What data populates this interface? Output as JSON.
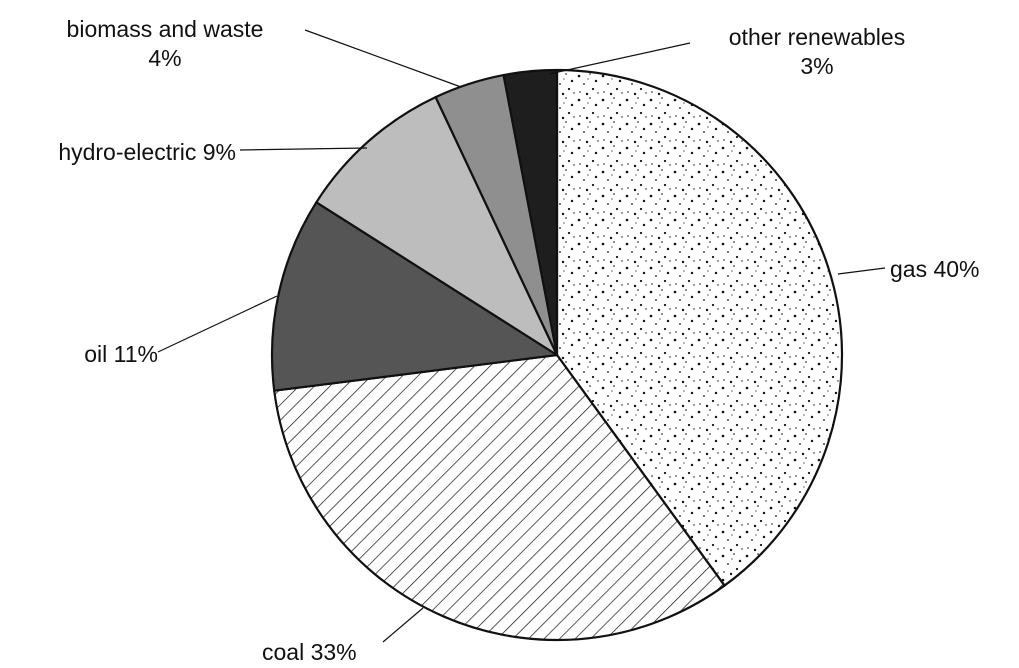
{
  "chart_data": {
    "type": "pie",
    "slices": [
      {
        "label": "gas 40%",
        "name": "gas",
        "value": 40,
        "fill": "pattern-dots"
      },
      {
        "label": "coal 33%",
        "name": "coal",
        "value": 33,
        "fill": "pattern-hatch"
      },
      {
        "label": "oil 11%",
        "name": "oil",
        "value": 11,
        "fill": "#555555"
      },
      {
        "label": "hydro-electric 9%",
        "name": "hydro-electric",
        "value": 9,
        "fill": "#bdbdbd"
      },
      {
        "label": [
          "biomass and waste",
          "4%"
        ],
        "name": "biomass and waste",
        "value": 4,
        "fill": "#8f8f8f"
      },
      {
        "label": [
          "other renewables",
          "3%"
        ],
        "name": "other renewables",
        "value": 3,
        "fill": "#1e1e1e"
      }
    ],
    "start": "12 o'clock",
    "direction": "clockwise"
  }
}
